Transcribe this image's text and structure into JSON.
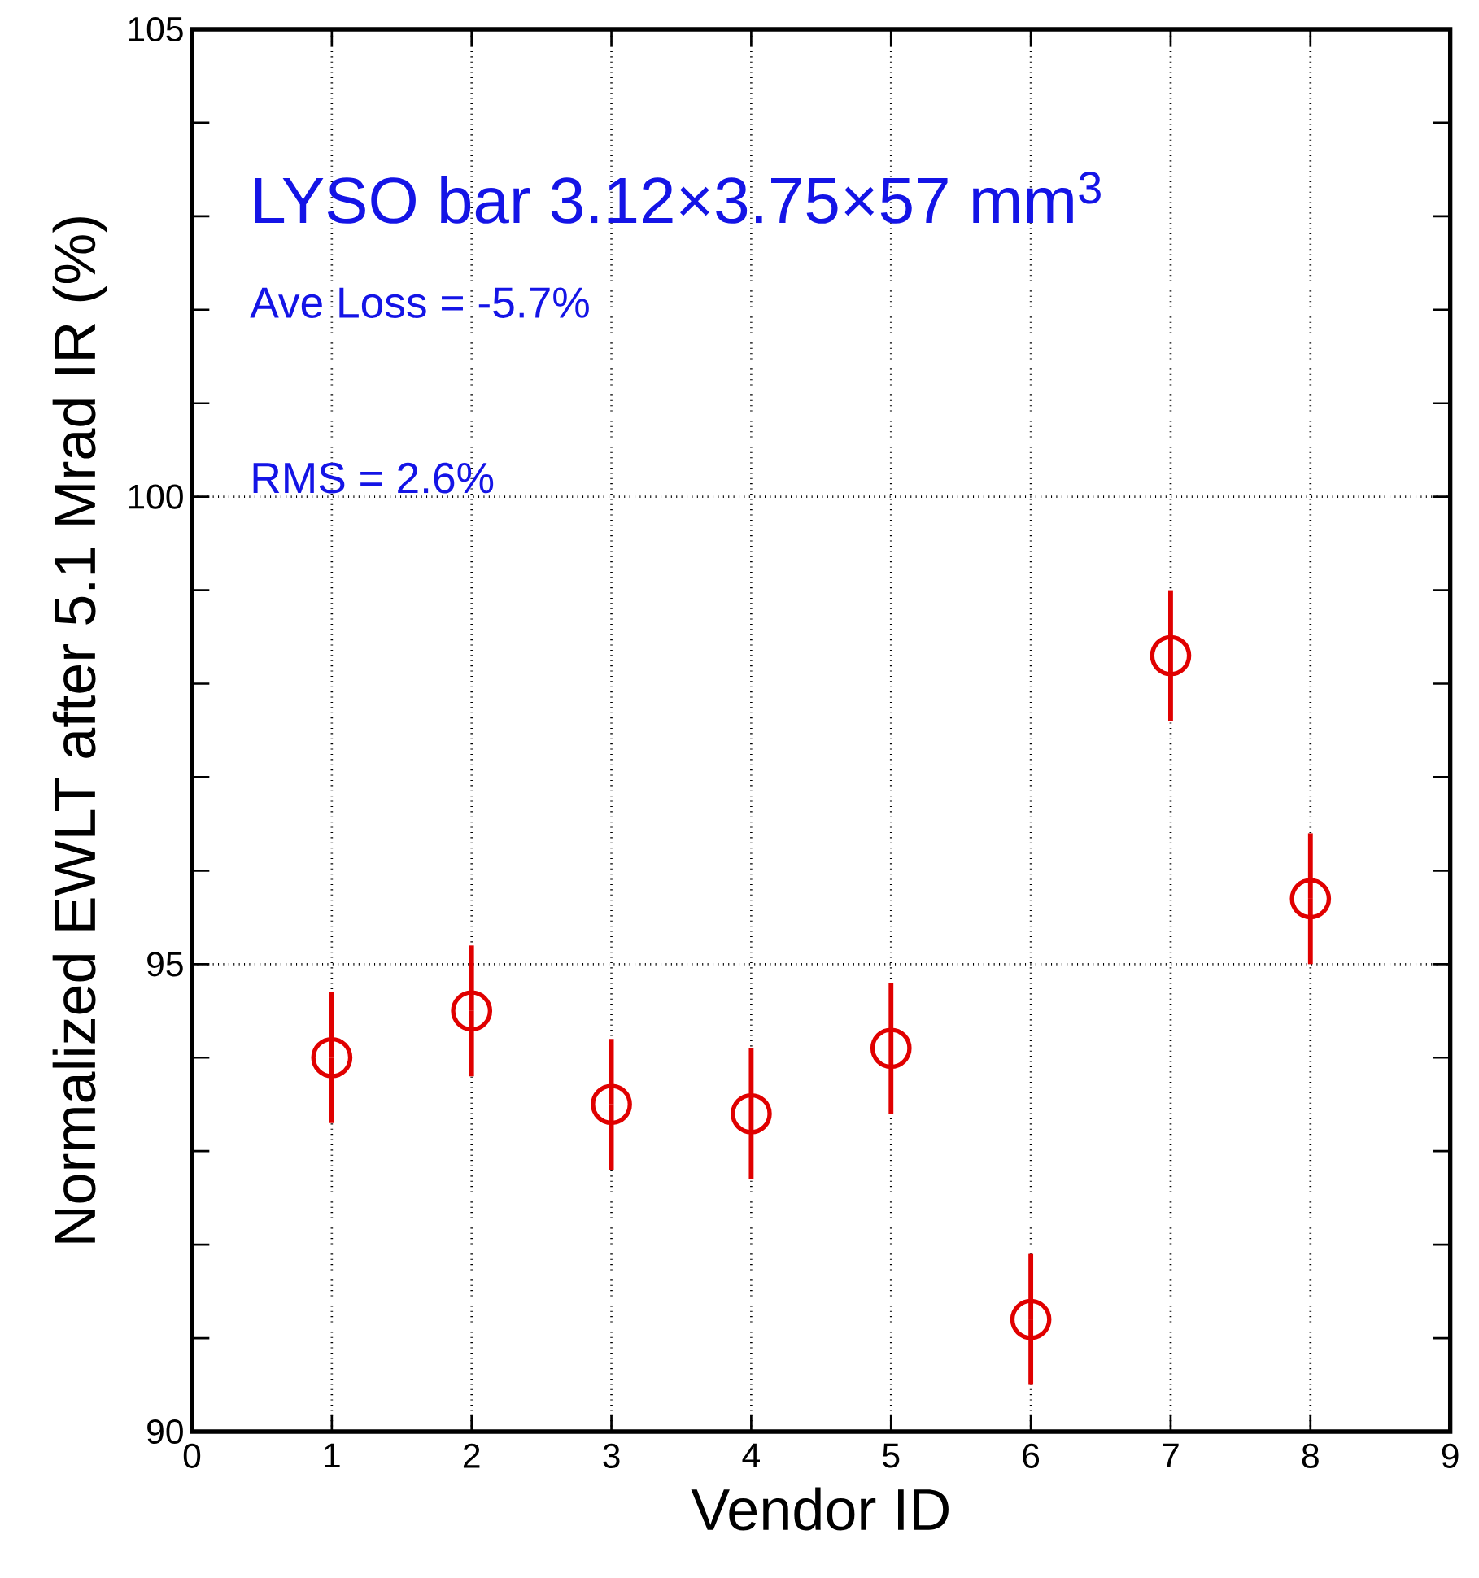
{
  "chart_data": {
    "type": "scatter",
    "xlabel": "Vendor ID",
    "ylabel": "Normalized EWLT after 5.1 Mrad IR (%)",
    "annotations": [
      "LYSO  bar  3.12×3.75×57   mm$^{3}$",
      "Ave Loss = -5.7%",
      "RMS = 2.6%"
    ],
    "x": [
      1,
      2,
      3,
      4,
      5,
      6,
      7,
      8
    ],
    "values": [
      94.0,
      94.5,
      93.5,
      93.4,
      94.1,
      91.2,
      98.3,
      95.7
    ],
    "errors": [
      0.7,
      0.7,
      0.7,
      0.7,
      0.7,
      0.7,
      0.7,
      0.7
    ],
    "color": "#e00000",
    "marker": "circle",
    "xlim": [
      0,
      9
    ],
    "xticks": [
      0,
      1,
      2,
      3,
      4,
      5,
      6,
      7,
      8,
      9
    ],
    "ylim": [
      90,
      105
    ],
    "yticks": [
      90,
      95,
      100,
      105
    ],
    "grid": true
  }
}
